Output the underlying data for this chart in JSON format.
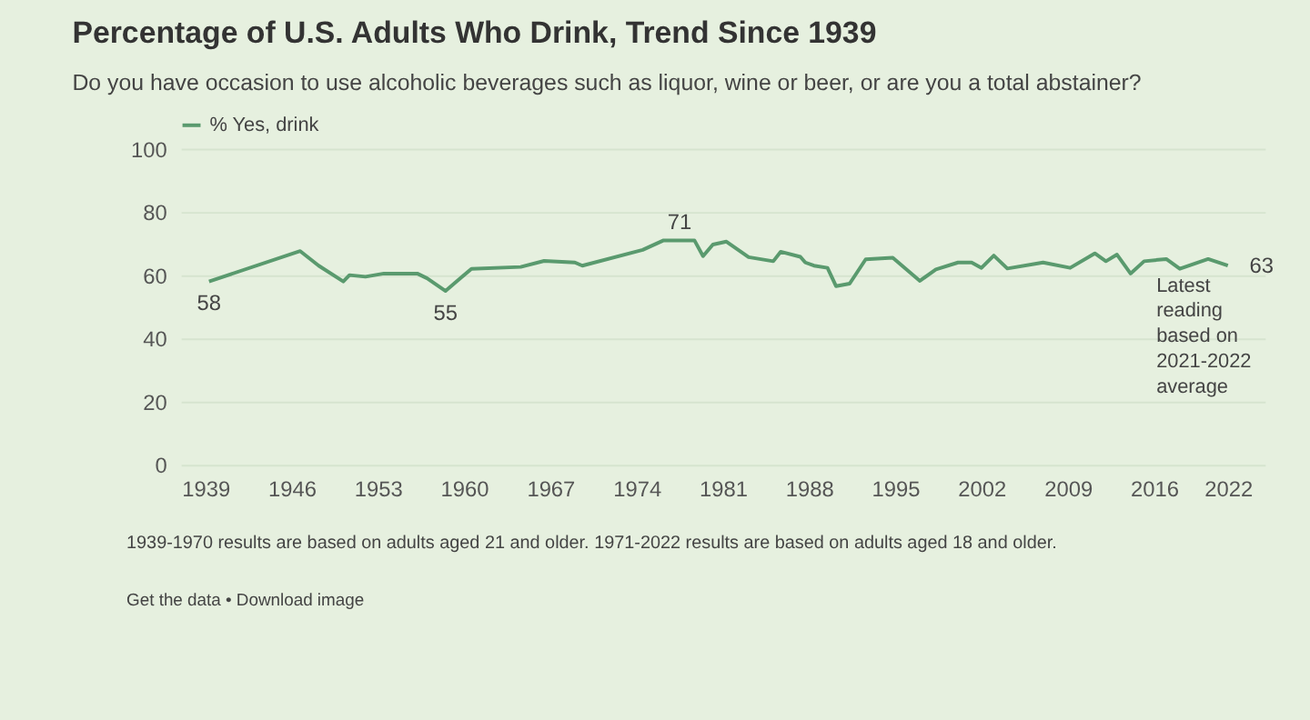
{
  "chart_data": {
    "type": "line",
    "title": "Percentage of U.S. Adults Who Drink, Trend Since 1939",
    "subtitle": "Do you have occasion to use alcoholic beverages such as liquor, wine or beer, or are you a total abstainer?",
    "x": [
      1939.3,
      1946.7,
      1948.2,
      1950.2,
      1950.7,
      1952,
      1953.5,
      1956.2,
      1957,
      1958.5,
      1960.6,
      1964.6,
      1966.5,
      1969,
      1969.6,
      1974.5,
      1976.2,
      1978.7,
      1979.4,
      1980.2,
      1981.3,
      1983.1,
      1985.1,
      1985.7,
      1987.3,
      1987.7,
      1988.4,
      1989.5,
      1990.2,
      1991.3,
      1992.6,
      1994.8,
      1997,
      1998.3,
      2000.1,
      2001.2,
      2002,
      2003,
      2004.1,
      2007,
      2009.2,
      2011.2,
      2012.1,
      2013,
      2014.1,
      2015.2,
      2017,
      2018.1,
      2020.4,
      2022
    ],
    "series": [
      {
        "name": "% Yes, drink",
        "color": "#5a9a6e",
        "values": [
          58,
          67.6,
          63,
          58,
          60,
          59.5,
          60.5,
          60.5,
          59,
          55,
          62,
          62.6,
          64.5,
          64,
          63,
          68,
          71,
          71,
          66,
          69.7,
          70.6,
          65.7,
          64.4,
          67.4,
          65.8,
          64,
          63,
          62.3,
          56.5,
          57.3,
          65,
          65.5,
          58.2,
          61.8,
          64,
          64,
          62.3,
          66.2,
          62.1,
          64,
          62.3,
          66.9,
          64.4,
          66.5,
          60.5,
          64.4,
          65.1,
          62,
          65.1,
          63
        ]
      }
    ],
    "xlim": [
      1937,
      2025
    ],
    "xticks": [
      1939,
      1946,
      1953,
      1960,
      1967,
      1974,
      1981,
      1988,
      1995,
      2002,
      2009,
      2016,
      2022
    ],
    "ylim": [
      0,
      100
    ],
    "yticks": [
      0,
      20,
      40,
      60,
      80,
      100
    ],
    "grid": "y",
    "legend": "top left",
    "marker": "none",
    "line_style": "solid",
    "annotations": [
      {
        "text": "58",
        "x": 1939.3,
        "y": 58
      },
      {
        "text": "55",
        "x": 1958.5,
        "y": 55
      },
      {
        "text": "71",
        "x": 1977.5,
        "y": 71
      },
      {
        "text": "63",
        "x": 2022,
        "y": 63
      },
      "Latest reading based on 2021-2022 average",
      "1939-1970 results are based on adults aged 21 and older. 1971-2022 results are based on adults aged 18 and older.",
      "Get the data • Download image"
    ]
  }
}
